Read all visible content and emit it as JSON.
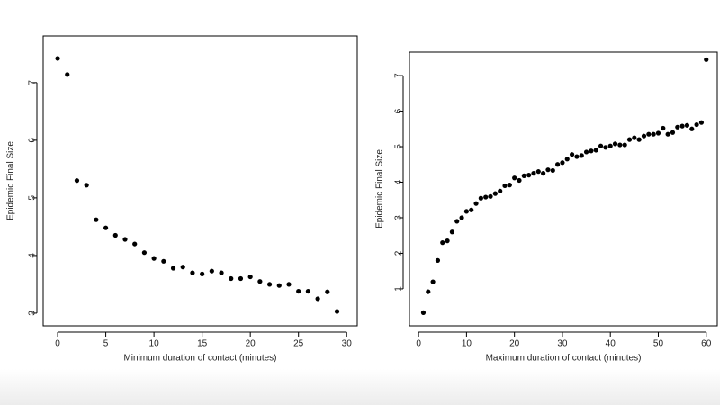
{
  "chart_data": [
    {
      "type": "scatter",
      "x_label": "Minimum duration of contact (minutes)",
      "y_label": "Epidemic Final Size",
      "color": "#000000",
      "x": [
        0,
        1,
        2,
        3,
        4,
        5,
        6,
        7,
        8,
        9,
        10,
        11,
        12,
        13,
        14,
        15,
        16,
        17,
        18,
        19,
        20,
        21,
        22,
        23,
        24,
        25,
        26,
        27,
        28,
        29
      ],
      "values": [
        7.42,
        7.14,
        5.3,
        5.22,
        4.62,
        4.48,
        4.35,
        4.28,
        4.2,
        4.05,
        3.95,
        3.9,
        3.78,
        3.8,
        3.7,
        3.68,
        3.73,
        3.7,
        3.6,
        3.6,
        3.63,
        3.55,
        3.5,
        3.48,
        3.5,
        3.38,
        3.38,
        3.25,
        3.37,
        3.03
      ],
      "xlim": [
        -1.5,
        31.1
      ],
      "ylim": [
        2.78,
        7.81
      ],
      "xticks": [
        0,
        5,
        10,
        15,
        20,
        25,
        30
      ],
      "yticks": [
        3,
        4,
        5,
        6,
        7
      ]
    },
    {
      "type": "scatter",
      "x_label": "Maximum duration of contact (minutes)",
      "y_label": "Epidemic Final Size",
      "color": "#000000",
      "x": [
        1,
        2,
        3,
        4,
        5,
        6,
        7,
        8,
        9,
        10,
        11,
        12,
        13,
        14,
        15,
        16,
        17,
        18,
        19,
        20,
        21,
        22,
        23,
        24,
        25,
        26,
        27,
        28,
        29,
        30,
        31,
        32,
        33,
        34,
        35,
        36,
        37,
        38,
        39,
        40,
        41,
        42,
        43,
        44,
        45,
        46,
        47,
        48,
        49,
        50,
        51,
        52,
        53,
        54,
        55,
        56,
        57,
        58,
        59,
        60
      ],
      "values": [
        0.33,
        0.92,
        1.2,
        1.8,
        2.3,
        2.35,
        2.6,
        2.9,
        3.0,
        3.18,
        3.22,
        3.4,
        3.55,
        3.58,
        3.6,
        3.68,
        3.75,
        3.9,
        3.92,
        4.12,
        4.05,
        4.18,
        4.2,
        4.25,
        4.3,
        4.25,
        4.35,
        4.33,
        4.5,
        4.55,
        4.65,
        4.78,
        4.72,
        4.75,
        4.85,
        4.88,
        4.9,
        5.02,
        4.98,
        5.02,
        5.08,
        5.05,
        5.05,
        5.2,
        5.25,
        5.2,
        5.3,
        5.35,
        5.35,
        5.38,
        5.52,
        5.35,
        5.4,
        5.55,
        5.58,
        5.6,
        5.5,
        5.62,
        5.68,
        7.45
      ],
      "xlim": [
        -1.9,
        62.3
      ],
      "ylim": [
        -0.04,
        7.66
      ],
      "xticks": [
        0,
        10,
        20,
        30,
        40,
        50,
        60
      ],
      "yticks": [
        1,
        2,
        3,
        4,
        5,
        6,
        7
      ]
    }
  ]
}
